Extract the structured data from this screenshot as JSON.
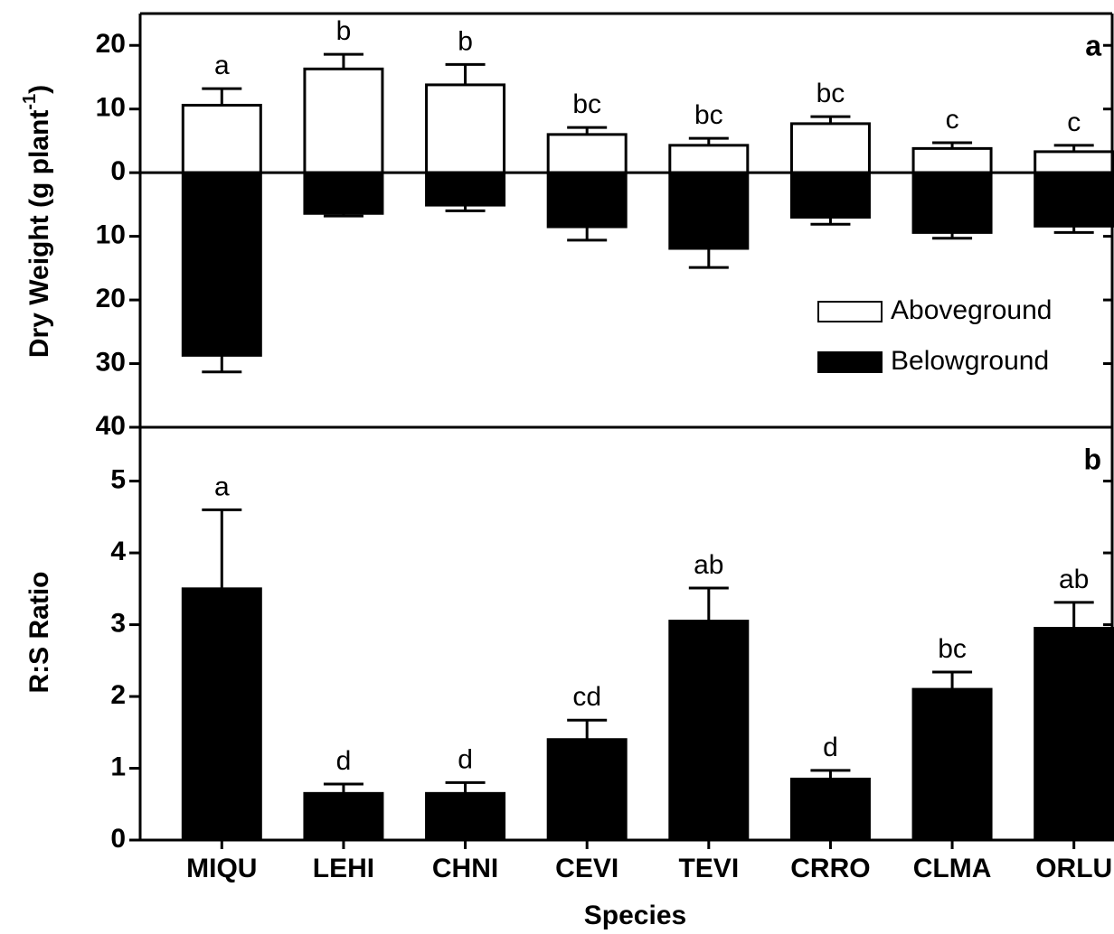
{
  "chart_data": [
    {
      "type": "bar",
      "panel_label": "a",
      "ylabel": [
        "Dry Weight (g plant",
        "-1",
        ")"
      ],
      "series": [
        {
          "name": "Aboveground",
          "color": "#ffffff",
          "values": [
            10.6,
            16.3,
            13.8,
            6.0,
            4.3,
            7.7,
            3.8,
            3.3
          ],
          "errors": [
            2.6,
            2.3,
            3.2,
            1.1,
            1.1,
            1.1,
            0.9,
            1.0
          ],
          "annotations": [
            "a",
            "b",
            "b",
            "bc",
            "bc",
            "bc",
            "c",
            "c"
          ]
        },
        {
          "name": "Belowground",
          "color": "#000000",
          "values": [
            -28.7,
            -6.4,
            -5.1,
            -8.5,
            -11.9,
            -7.0,
            -9.4,
            -8.4
          ],
          "errors": [
            2.6,
            0.4,
            0.9,
            2.1,
            3.0,
            1.1,
            0.9,
            1.0
          ]
        }
      ],
      "ylim": [
        -40,
        25
      ],
      "yticks": [
        20,
        10,
        0,
        {
          "value": -10,
          "label": "10"
        },
        {
          "value": -20,
          "label": "20"
        },
        {
          "value": -30,
          "label": "30"
        },
        {
          "value": -40,
          "label": "40"
        }
      ],
      "legend": "lower right"
    },
    {
      "type": "bar",
      "panel_label": "b",
      "ylabel": [
        "R:S Ratio"
      ],
      "xlabel": "Species",
      "categories": [
        "MIQU",
        "LEHI",
        "CHNI",
        "CEVI",
        "TEVI",
        "CRRO",
        "CLMA",
        "ORLU"
      ],
      "series": [
        {
          "color": "#000000",
          "values": [
            3.5,
            0.65,
            0.65,
            1.4,
            3.05,
            0.85,
            2.1,
            2.95
          ],
          "errors": [
            1.1,
            0.13,
            0.15,
            0.27,
            0.46,
            0.12,
            0.24,
            0.36
          ],
          "annotations": [
            "a",
            "d",
            "d",
            "cd",
            "ab",
            "d",
            "bc",
            "ab"
          ]
        }
      ],
      "ylim": [
        0,
        5.75
      ],
      "yticks": [
        0,
        1,
        2,
        3,
        4,
        5
      ]
    }
  ]
}
